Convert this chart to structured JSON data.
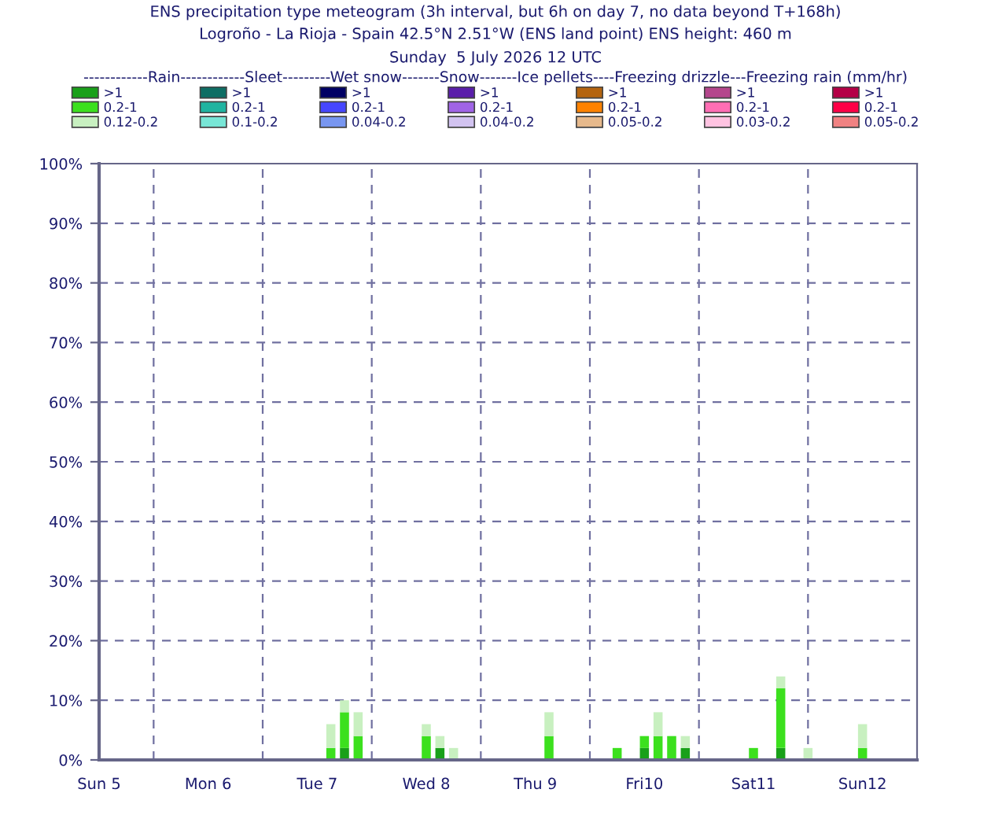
{
  "chart_data": {
    "type": "bar",
    "stacked": true,
    "title": "ENS precipitation type meteogram (3h interval, but 6h on day 7, no data beyond T+168h)",
    "subtitle": "Logroño - La Rioja - Spain 42.5°N 2.51°W (ENS land point) ENS height: 460 m",
    "annotations": [
      "Sunday  5 July 2026 12 UTC"
    ],
    "legend_title": "------------Rain------------Sleet---------Wet snow-------Snow-------Ice pellets----Freezing drizzle---Freezing rain (mm/hr)",
    "x": [
      "2026-07-07T15:00",
      "2026-07-07T18:00",
      "2026-07-07T21:00",
      "2026-07-08T12:00",
      "2026-07-08T15:00",
      "2026-07-08T18:00",
      "2026-07-09T15:00",
      "2026-07-10T06:00",
      "2026-07-10T12:00",
      "2026-07-10T15:00",
      "2026-07-10T18:00",
      "2026-07-10T21:00",
      "2026-07-11T12:00",
      "2026-07-11T18:00",
      "2026-07-12T00:00",
      "2026-07-12T12:00"
    ],
    "series": [
      {
        "name": ">1",
        "color": "#19a019",
        "values": [
          0,
          2,
          0,
          0,
          2,
          0,
          0,
          0,
          2,
          0,
          0,
          2,
          0,
          2,
          0,
          0
        ]
      },
      {
        "name": "0.2-1",
        "color": "#3ce01e",
        "values": [
          2,
          6,
          4,
          4,
          0,
          0,
          4,
          2,
          2,
          4,
          4,
          0,
          2,
          10,
          0,
          2
        ]
      },
      {
        "name": "0.12-0.2",
        "color": "#c8f0c0",
        "values": [
          4,
          2,
          4,
          2,
          2,
          2,
          4,
          0,
          0,
          4,
          0,
          2,
          0,
          2,
          2,
          4
        ]
      },
      {
        "name": ">1",
        "color": "#0e6e64",
        "values": [
          0,
          0,
          0,
          0,
          0,
          0,
          0,
          0,
          0,
          0,
          0,
          0,
          0,
          0,
          0,
          0
        ]
      },
      {
        "name": "0.2-1",
        "color": "#20b4a0",
        "values": [
          0,
          0,
          0,
          0,
          0,
          0,
          0,
          0,
          0,
          0,
          0,
          0,
          0,
          0,
          0,
          0
        ]
      },
      {
        "name": "0.1-0.2",
        "color": "#78e6d6",
        "values": [
          0,
          0,
          0,
          0,
          0,
          0,
          0,
          0,
          0,
          0,
          0,
          0,
          0,
          0,
          0,
          0
        ]
      },
      {
        "name": ">1",
        "color": "#000064",
        "values": [
          0,
          0,
          0,
          0,
          0,
          0,
          0,
          0,
          0,
          0,
          0,
          0,
          0,
          0,
          0,
          0
        ]
      },
      {
        "name": "0.2-1",
        "color": "#4646ff",
        "values": [
          0,
          0,
          0,
          0,
          0,
          0,
          0,
          0,
          0,
          0,
          0,
          0,
          0,
          0,
          0,
          0
        ]
      },
      {
        "name": "0.04-0.2",
        "color": "#7896f0",
        "values": [
          0,
          0,
          0,
          0,
          0,
          0,
          0,
          0,
          0,
          0,
          0,
          0,
          0,
          0,
          0,
          0
        ]
      },
      {
        "name": ">1",
        "color": "#5a1eaa",
        "values": [
          0,
          0,
          0,
          0,
          0,
          0,
          0,
          0,
          0,
          0,
          0,
          0,
          0,
          0,
          0,
          0
        ]
      },
      {
        "name": "0.2-1",
        "color": "#a064e6",
        "values": [
          0,
          0,
          0,
          0,
          0,
          0,
          0,
          0,
          0,
          0,
          0,
          0,
          0,
          0,
          0,
          0
        ]
      },
      {
        "name": "0.04-0.2",
        "color": "#d2c3f0",
        "values": [
          0,
          0,
          0,
          0,
          0,
          0,
          0,
          0,
          0,
          0,
          0,
          0,
          0,
          0,
          0,
          0
        ]
      },
      {
        "name": ">1",
        "color": "#b4640f",
        "values": [
          0,
          0,
          0,
          0,
          0,
          0,
          0,
          0,
          0,
          0,
          0,
          0,
          0,
          0,
          0,
          0
        ]
      },
      {
        "name": "0.2-1",
        "color": "#ff8200",
        "values": [
          0,
          0,
          0,
          0,
          0,
          0,
          0,
          0,
          0,
          0,
          0,
          0,
          0,
          0,
          0,
          0
        ]
      },
      {
        "name": "0.05-0.2",
        "color": "#e6b98c",
        "values": [
          0,
          0,
          0,
          0,
          0,
          0,
          0,
          0,
          0,
          0,
          0,
          0,
          0,
          0,
          0,
          0
        ]
      },
      {
        "name": ">1",
        "color": "#b4468c",
        "values": [
          0,
          0,
          0,
          0,
          0,
          0,
          0,
          0,
          0,
          0,
          0,
          0,
          0,
          0,
          0,
          0
        ]
      },
      {
        "name": "0.2-1",
        "color": "#ff6eb4",
        "values": [
          0,
          0,
          0,
          0,
          0,
          0,
          0,
          0,
          0,
          0,
          0,
          0,
          0,
          0,
          0,
          0
        ]
      },
      {
        "name": "0.03-0.2",
        "color": "#ffc3e1",
        "values": [
          0,
          0,
          0,
          0,
          0,
          0,
          0,
          0,
          0,
          0,
          0,
          0,
          0,
          0,
          0,
          0
        ]
      },
      {
        "name": ">1",
        "color": "#b40046",
        "values": [
          0,
          0,
          0,
          0,
          0,
          0,
          0,
          0,
          0,
          0,
          0,
          0,
          0,
          0,
          0,
          0
        ]
      },
      {
        "name": "0.2-1",
        "color": "#ff0046",
        "values": [
          0,
          0,
          0,
          0,
          0,
          0,
          0,
          0,
          0,
          0,
          0,
          0,
          0,
          0,
          0,
          0
        ]
      },
      {
        "name": "0.05-0.2",
        "color": "#f08282",
        "values": [
          0,
          0,
          0,
          0,
          0,
          0,
          0,
          0,
          0,
          0,
          0,
          0,
          0,
          0,
          0,
          0
        ]
      }
    ],
    "xlim": [
      "2026-07-05T12:00",
      "2026-07-13T00:00"
    ],
    "xticks": [
      {
        "value": "2026-07-05T12:00",
        "label": "Sun 5"
      },
      {
        "value": "2026-07-06T12:00",
        "label": "Mon 6"
      },
      {
        "value": "2026-07-07T12:00",
        "label": "Tue 7"
      },
      {
        "value": "2026-07-08T12:00",
        "label": "Wed 8"
      },
      {
        "value": "2026-07-09T12:00",
        "label": "Thu 9"
      },
      {
        "value": "2026-07-10T12:00",
        "label": "Fri10"
      },
      {
        "value": "2026-07-11T12:00",
        "label": "Sat11"
      },
      {
        "value": "2026-07-12T12:00",
        "label": "Sun12"
      },
      {
        "value": "2026-07-06",
        "label": null
      },
      {
        "value": "2026-07-07",
        "label": null
      },
      {
        "value": "2026-07-08",
        "label": null
      },
      {
        "value": "2026-07-09",
        "label": null
      },
      {
        "value": "2026-07-10",
        "label": null
      },
      {
        "value": "2026-07-11",
        "label": null
      },
      {
        "value": "2026-07-12",
        "label": null
      }
    ],
    "ylim": [
      0,
      100
    ],
    "yticks": [
      {
        "value": 0,
        "label": "0%"
      },
      {
        "value": 10,
        "label": "10%"
      },
      {
        "value": 20,
        "label": "20%"
      },
      {
        "value": 30,
        "label": "30%"
      },
      {
        "value": 40,
        "label": "40%"
      },
      {
        "value": 50,
        "label": "50%"
      },
      {
        "value": 60,
        "label": "60%"
      },
      {
        "value": 70,
        "label": "70%"
      },
      {
        "value": 80,
        "label": "80%"
      },
      {
        "value": 90,
        "label": "90%"
      },
      {
        "value": 100,
        "label": "100%"
      }
    ],
    "grid": true,
    "legend": "top"
  }
}
